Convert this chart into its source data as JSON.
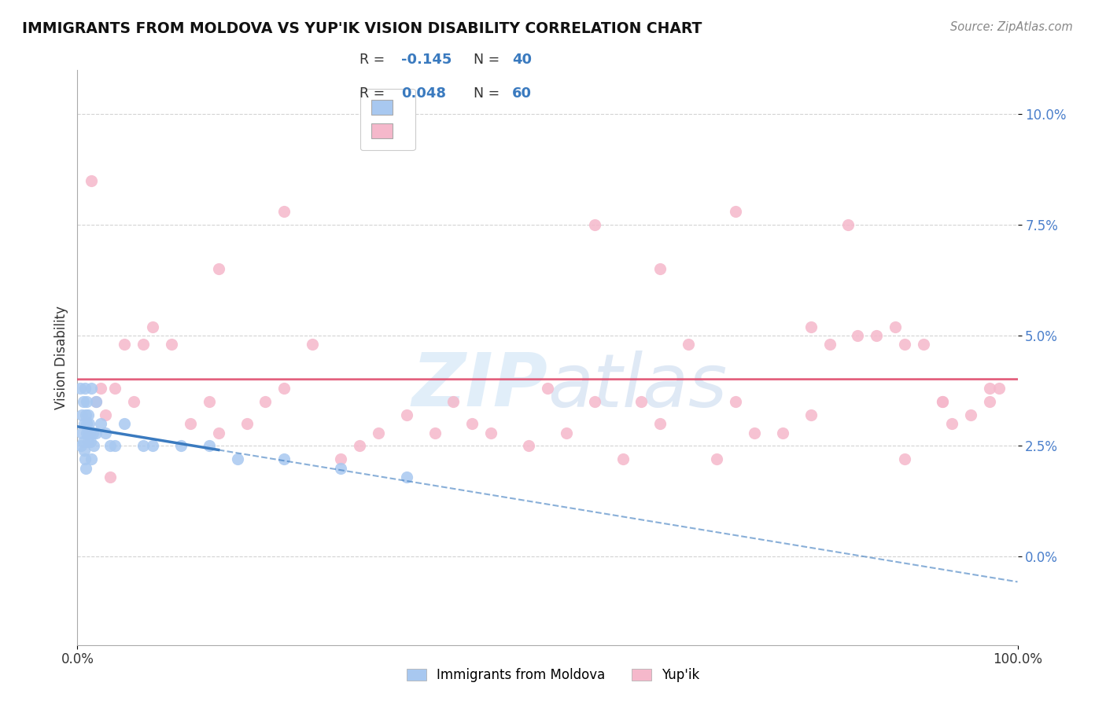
{
  "title": "IMMIGRANTS FROM MOLDOVA VS YUP'IK VISION DISABILITY CORRELATION CHART",
  "source": "Source: ZipAtlas.com",
  "ylabel": "Vision Disability",
  "legend_blue_label": "Immigrants from Moldova",
  "legend_pink_label": "Yup'ik",
  "xlim": [
    0,
    100
  ],
  "ylim": [
    -2.0,
    11.0
  ],
  "yticks": [
    0.0,
    2.5,
    5.0,
    7.5,
    10.0
  ],
  "xticks": [
    0,
    100
  ],
  "blue_color": "#a8c8f0",
  "pink_color": "#f5b8cb",
  "blue_line_color": "#3a7abf",
  "pink_line_color": "#e05070",
  "watermark_color": "#c5dff5",
  "blue_points_x": [
    0.3,
    0.4,
    0.5,
    0.5,
    0.6,
    0.6,
    0.7,
    0.7,
    0.8,
    0.8,
    0.9,
    0.9,
    1.0,
    1.0,
    1.0,
    1.1,
    1.1,
    1.2,
    1.2,
    1.3,
    1.4,
    1.5,
    1.5,
    1.6,
    1.7,
    2.0,
    2.0,
    2.5,
    3.0,
    3.5,
    4.0,
    5.0,
    7.0,
    8.0,
    11.0,
    14.0,
    17.0,
    22.0,
    28.0,
    35.0
  ],
  "blue_points_y": [
    3.8,
    2.5,
    3.2,
    2.8,
    3.5,
    2.6,
    3.0,
    2.4,
    3.8,
    2.2,
    3.2,
    2.0,
    3.5,
    3.0,
    2.8,
    3.2,
    2.6,
    3.0,
    2.8,
    2.8,
    2.6,
    3.8,
    2.2,
    2.8,
    2.5,
    3.5,
    2.8,
    3.0,
    2.8,
    2.5,
    2.5,
    3.0,
    2.5,
    2.5,
    2.5,
    2.5,
    2.2,
    2.2,
    2.0,
    1.8
  ],
  "pink_points_x": [
    1.5,
    2.0,
    2.5,
    3.0,
    3.5,
    4.0,
    5.0,
    6.0,
    7.0,
    8.0,
    10.0,
    12.0,
    14.0,
    15.0,
    18.0,
    20.0,
    22.0,
    25.0,
    28.0,
    30.0,
    32.0,
    35.0,
    38.0,
    40.0,
    42.0,
    44.0,
    48.0,
    50.0,
    52.0,
    55.0,
    58.0,
    60.0,
    62.0,
    65.0,
    68.0,
    70.0,
    72.0,
    75.0,
    78.0,
    80.0,
    82.0,
    85.0,
    87.0,
    88.0,
    90.0,
    92.0,
    93.0,
    95.0,
    97.0,
    98.0,
    15.0,
    22.0,
    55.0,
    62.0,
    70.0,
    78.0,
    83.0,
    88.0,
    92.0,
    97.0
  ],
  "pink_points_y": [
    8.5,
    3.5,
    3.8,
    3.2,
    1.8,
    3.8,
    4.8,
    3.5,
    4.8,
    5.2,
    4.8,
    3.0,
    3.5,
    2.8,
    3.0,
    3.5,
    3.8,
    4.8,
    2.2,
    2.5,
    2.8,
    3.2,
    2.8,
    3.5,
    3.0,
    2.8,
    2.5,
    3.8,
    2.8,
    3.5,
    2.2,
    3.5,
    3.0,
    4.8,
    2.2,
    3.5,
    2.8,
    2.8,
    3.2,
    4.8,
    7.5,
    5.0,
    5.2,
    2.2,
    4.8,
    3.5,
    3.0,
    3.2,
    3.5,
    3.8,
    6.5,
    7.8,
    7.5,
    6.5,
    7.8,
    5.2,
    5.0,
    4.8,
    3.5,
    3.8
  ]
}
